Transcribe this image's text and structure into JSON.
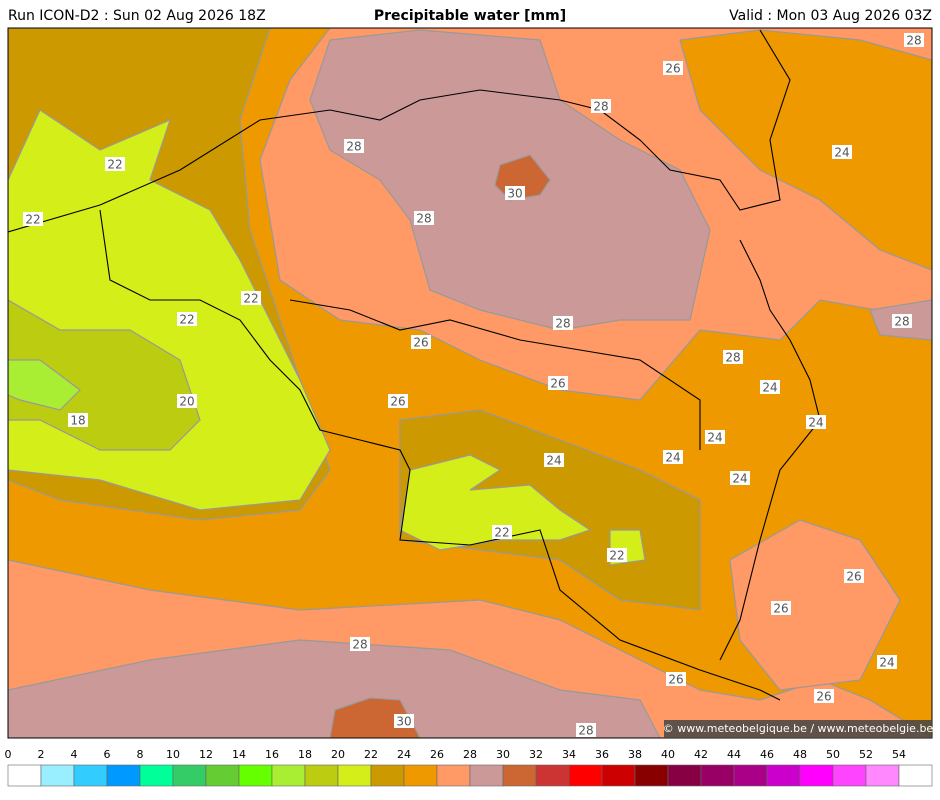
{
  "header": {
    "run": "Run ICON-D2 : Sun 02 Aug 2026 18Z",
    "title": "Precipitable water [mm]",
    "valid": "Valid : Mon 03 Aug 2026 03Z"
  },
  "map": {
    "contour_labels": [
      "28",
      "26",
      "28",
      "24",
      "28",
      "30",
      "22",
      "22",
      "28",
      "22",
      "22",
      "28",
      "28",
      "26",
      "28",
      "26",
      "24",
      "20",
      "26",
      "18",
      "24",
      "24",
      "24",
      "24",
      "24",
      "22",
      "22",
      "26",
      "26",
      "28",
      "24",
      "26",
      "26",
      "30",
      "28"
    ],
    "credit": "© www.meteobelgique.be / www.meteobelgie.be"
  },
  "colorbar": {
    "ticks": [
      0,
      2,
      4,
      6,
      8,
      10,
      12,
      14,
      16,
      18,
      20,
      22,
      24,
      26,
      28,
      30,
      32,
      34,
      36,
      38,
      40,
      42,
      44,
      46,
      48,
      50,
      52,
      54
    ],
    "colors": [
      "#ffffff",
      "#99eeff",
      "#33ccff",
      "#0099ff",
      "#00ff99",
      "#33cc66",
      "#66cc33",
      "#66ff00",
      "#aaee33",
      "#bbcc11",
      "#d4ee1a",
      "#cc9900",
      "#ee9900",
      "#ff9966",
      "#cc9999",
      "#cc6633",
      "#cc3333",
      "#ff0000",
      "#cc0000",
      "#880000",
      "#880044",
      "#990066",
      "#aa0088",
      "#cc00cc",
      "#ff00ff",
      "#ff44ff",
      "#ff88ff",
      "#ffffff"
    ]
  }
}
